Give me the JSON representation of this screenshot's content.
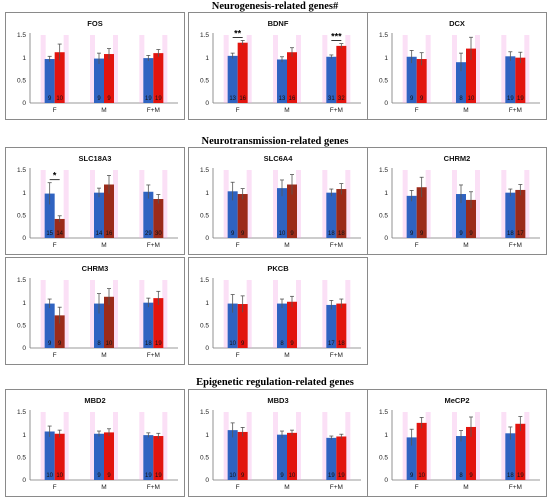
{
  "section_titles": [
    "Neurogenesis-related genes#",
    "Neurotransmission-related genes",
    "Epigenetic regulation-related genes"
  ],
  "colors": {
    "series_a": "#2f63c1",
    "series_b_normal": "#e2140e",
    "series_b_dark": "#9b2b1a",
    "error": "#555555",
    "tint": "#f4a6e6"
  },
  "chart_data": [
    {
      "type": "bar",
      "title": "FOS",
      "categories": [
        "F",
        "M",
        "F+M"
      ],
      "ylim": [
        0,
        1.5
      ],
      "yticks": [
        "0",
        "0.5",
        "1",
        "1.5"
      ],
      "series": [
        {
          "values": [
            0.97,
            0.98,
            0.99
          ],
          "errors": [
            0.06,
            0.12,
            0.06
          ],
          "n": [
            "9",
            "9",
            "19"
          ]
        },
        {
          "values": [
            1.12,
            1.08,
            1.1
          ],
          "errors": [
            0.18,
            0.12,
            0.08
          ],
          "n": [
            "10",
            "9",
            "19"
          ]
        }
      ],
      "red_style": [
        "normal",
        "normal",
        "normal"
      ],
      "significance": []
    },
    {
      "type": "bar",
      "title": "BDNF",
      "categories": [
        "F",
        "M",
        "F+M"
      ],
      "ylim": [
        0,
        1.5
      ],
      "yticks": [
        "0",
        "0.5",
        "1",
        "1.5"
      ],
      "series": [
        {
          "values": [
            1.04,
            0.96,
            1.02
          ],
          "errors": [
            0.06,
            0.06,
            0.04
          ],
          "n": [
            "13",
            "13",
            "31"
          ]
        },
        {
          "values": [
            1.33,
            1.12,
            1.26
          ],
          "errors": [
            0.05,
            0.1,
            0.05
          ],
          "n": [
            "16",
            "16",
            "32"
          ]
        }
      ],
      "red_style": [
        "normal",
        "normal",
        "normal"
      ],
      "significance": [
        {
          "category": 0,
          "label": "**"
        },
        {
          "category": 2,
          "label": "***"
        }
      ]
    },
    {
      "type": "bar",
      "title": "DCX",
      "categories": [
        "F",
        "M",
        "F+M"
      ],
      "ylim": [
        0,
        1.5
      ],
      "yticks": [
        "0",
        "0.5",
        "1",
        "1.5"
      ],
      "series": [
        {
          "values": [
            1.02,
            0.9,
            1.03
          ],
          "errors": [
            0.14,
            0.2,
            0.1
          ],
          "n": [
            "9",
            "8",
            "19"
          ]
        },
        {
          "values": [
            0.97,
            1.2,
            1.0
          ],
          "errors": [
            0.14,
            0.25,
            0.12
          ],
          "n": [
            "9",
            "10",
            "19"
          ]
        }
      ],
      "red_style": [
        "normal",
        "normal",
        "normal"
      ],
      "significance": []
    },
    {
      "type": "bar",
      "title": "SLC18A3",
      "categories": [
        "F",
        "M",
        "F+M"
      ],
      "ylim": [
        0,
        1.5
      ],
      "yticks": [
        "0",
        "0.5",
        "1",
        "1.5"
      ],
      "series": [
        {
          "values": [
            0.98,
            1.0,
            1.02
          ],
          "errors": [
            0.24,
            0.1,
            0.15
          ],
          "n": [
            "15",
            "14",
            "29"
          ]
        },
        {
          "values": [
            0.42,
            1.18,
            0.86
          ],
          "errors": [
            0.07,
            0.2,
            0.1
          ],
          "n": [
            "14",
            "16",
            "30"
          ]
        }
      ],
      "red_style": [
        "dark",
        "dark",
        "dark"
      ],
      "significance": [
        {
          "category": 0,
          "label": "*"
        }
      ]
    },
    {
      "type": "bar",
      "title": "SLC6A4",
      "categories": [
        "F",
        "M",
        "F+M"
      ],
      "ylim": [
        0,
        1.5
      ],
      "yticks": [
        "0",
        "0.5",
        "1",
        "1.5"
      ],
      "series": [
        {
          "values": [
            1.03,
            1.1,
            1.0
          ],
          "errors": [
            0.2,
            0.18,
            0.08
          ],
          "n": [
            "9",
            "10",
            "18"
          ]
        },
        {
          "values": [
            0.97,
            1.18,
            1.08
          ],
          "errors": [
            0.12,
            0.22,
            0.12
          ],
          "n": [
            "9",
            "9",
            "18"
          ]
        }
      ],
      "red_style": [
        "dark",
        "dark",
        "dark"
      ],
      "significance": []
    },
    {
      "type": "bar",
      "title": "CHRM2",
      "categories": [
        "F",
        "M",
        "F+M"
      ],
      "ylim": [
        0,
        1.5
      ],
      "yticks": [
        "0",
        "0.5",
        "1",
        "1.5"
      ],
      "series": [
        {
          "values": [
            0.93,
            0.97,
            1.0
          ],
          "errors": [
            0.12,
            0.2,
            0.08
          ],
          "n": [
            "9",
            "9",
            "18"
          ]
        },
        {
          "values": [
            1.12,
            0.84,
            1.06
          ],
          "errors": [
            0.22,
            0.18,
            0.12
          ],
          "n": [
            "9",
            "9",
            "17"
          ]
        }
      ],
      "red_style": [
        "dark",
        "dark",
        "dark"
      ],
      "significance": []
    },
    {
      "type": "bar",
      "title": "CHRM3",
      "categories": [
        "F",
        "M",
        "F+M"
      ],
      "ylim": [
        0,
        1.5
      ],
      "yticks": [
        "0",
        "0.5",
        "1",
        "1.5"
      ],
      "series": [
        {
          "values": [
            0.98,
            0.98,
            1.0
          ],
          "errors": [
            0.1,
            0.22,
            0.1
          ],
          "n": [
            "9",
            "8",
            "18"
          ]
        },
        {
          "values": [
            0.72,
            1.13,
            1.1
          ],
          "errors": [
            0.18,
            0.18,
            0.15
          ],
          "n": [
            "9",
            "10",
            "19"
          ]
        }
      ],
      "red_style": [
        "dark",
        "dark",
        "normal"
      ],
      "significance": []
    },
    {
      "type": "bar",
      "title": "PKCB",
      "categories": [
        "F",
        "M",
        "F+M"
      ],
      "ylim": [
        0,
        1.5
      ],
      "yticks": [
        "0",
        "0.5",
        "1",
        "1.5"
      ],
      "series": [
        {
          "values": [
            0.98,
            0.98,
            0.95
          ],
          "errors": [
            0.2,
            0.1,
            0.1
          ],
          "n": [
            "10",
            "8",
            "17"
          ]
        },
        {
          "values": [
            0.97,
            1.02,
            0.98
          ],
          "errors": [
            0.18,
            0.12,
            0.1
          ],
          "n": [
            "9",
            "9",
            "18"
          ]
        }
      ],
      "red_style": [
        "normal",
        "normal",
        "normal"
      ],
      "significance": []
    },
    {
      "type": "bar",
      "title": "MBD2",
      "categories": [
        "F",
        "M",
        "F+M"
      ],
      "ylim": [
        0,
        1.5
      ],
      "yticks": [
        "0",
        "0.5",
        "1",
        "1.5"
      ],
      "series": [
        {
          "values": [
            1.07,
            1.02,
            0.99
          ],
          "errors": [
            0.12,
            0.06,
            0.05
          ],
          "n": [
            "10",
            "9",
            "19"
          ]
        },
        {
          "values": [
            1.02,
            1.05,
            0.97
          ],
          "errors": [
            0.08,
            0.08,
            0.06
          ],
          "n": [
            "10",
            "9",
            "19"
          ]
        }
      ],
      "red_style": [
        "normal",
        "normal",
        "normal"
      ],
      "significance": []
    },
    {
      "type": "bar",
      "title": "MBD3",
      "categories": [
        "F",
        "M",
        "F+M"
      ],
      "ylim": [
        0,
        1.5
      ],
      "yticks": [
        "0",
        "0.5",
        "1",
        "1.5"
      ],
      "series": [
        {
          "values": [
            1.1,
            1.0,
            0.93
          ],
          "errors": [
            0.16,
            0.08,
            0.04
          ],
          "n": [
            "10",
            "9",
            "19"
          ]
        },
        {
          "values": [
            1.06,
            1.04,
            0.96
          ],
          "errors": [
            0.1,
            0.06,
            0.05
          ],
          "n": [
            "9",
            "10",
            "19"
          ]
        }
      ],
      "red_style": [
        "normal",
        "normal",
        "normal"
      ],
      "significance": []
    },
    {
      "type": "bar",
      "title": "MeCP2",
      "categories": [
        "F",
        "M",
        "F+M"
      ],
      "ylim": [
        0,
        1.5
      ],
      "yticks": [
        "0",
        "0.5",
        "1",
        "1.5"
      ],
      "series": [
        {
          "values": [
            0.94,
            0.97,
            1.03
          ],
          "errors": [
            0.18,
            0.12,
            0.14
          ],
          "n": [
            "9",
            "8",
            "18"
          ]
        },
        {
          "values": [
            1.26,
            1.17,
            1.24
          ],
          "errors": [
            0.12,
            0.22,
            0.16
          ],
          "n": [
            "10",
            "9",
            "19"
          ]
        }
      ],
      "red_style": [
        "normal",
        "normal",
        "normal"
      ],
      "significance": []
    }
  ]
}
